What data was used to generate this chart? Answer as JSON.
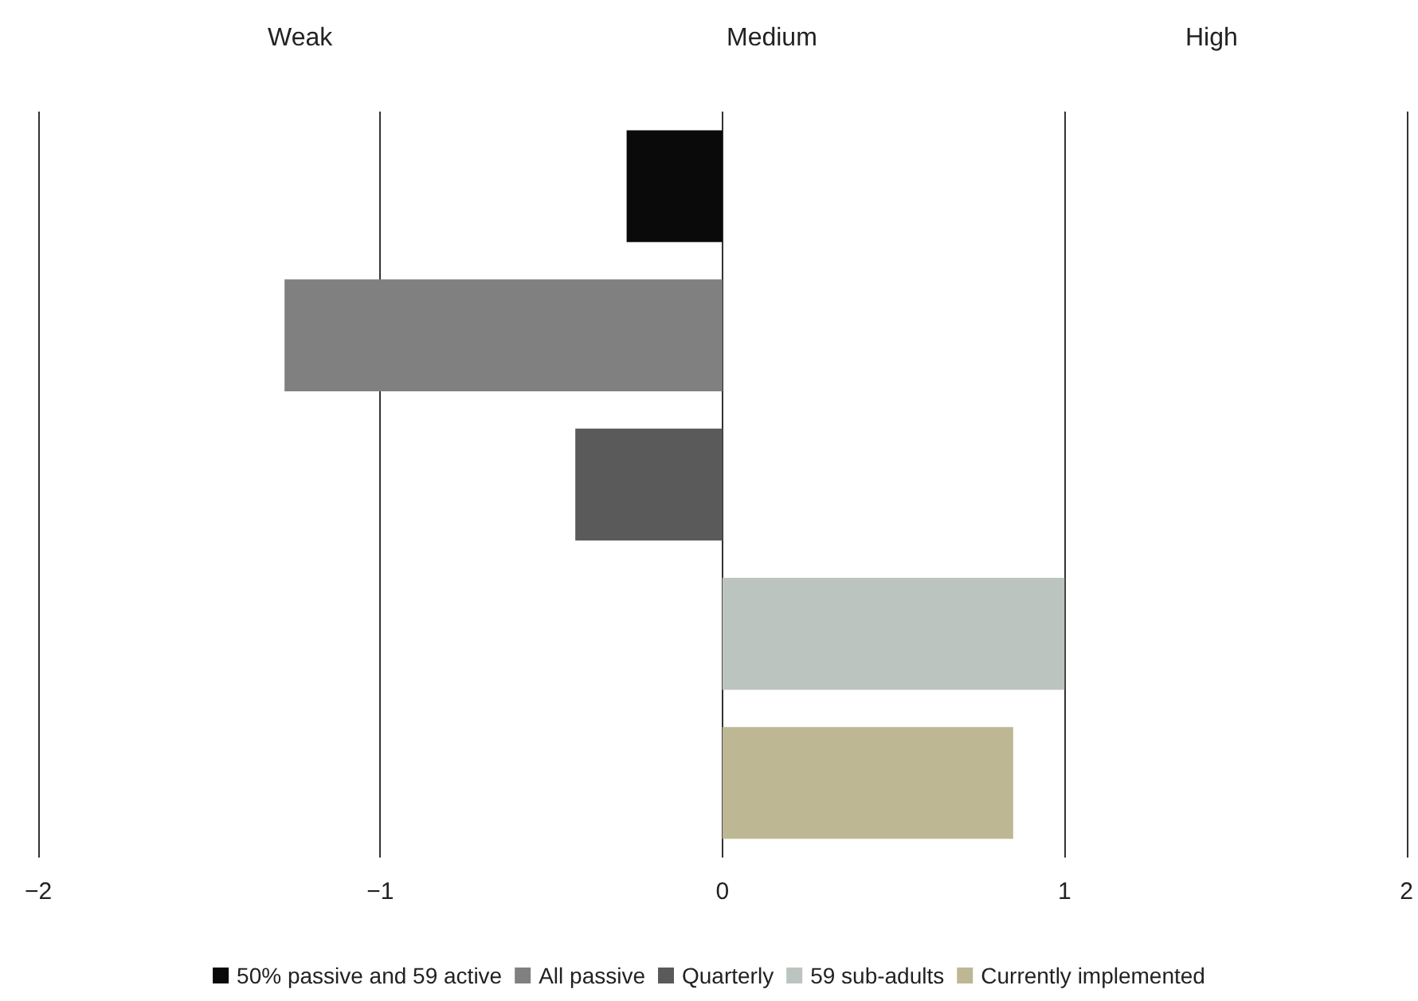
{
  "chart_data": {
    "type": "bar",
    "orientation": "horizontal",
    "stacked": true,
    "categories": [
      null,
      null,
      null,
      null,
      null
    ],
    "series": [
      {
        "name": "50% passive and 59 active",
        "color": "#0a0a0a",
        "values": [
          -0.28,
          null,
          null,
          null,
          null
        ]
      },
      {
        "name": "All passive",
        "color": "#808080",
        "values": [
          null,
          -1.28,
          null,
          null,
          null
        ]
      },
      {
        "name": "Quarterly",
        "color": "#5a5a5a",
        "values": [
          null,
          null,
          -0.43,
          null,
          null
        ]
      },
      {
        "name": "59 sub-adults",
        "color": "#bcc4c0",
        "values": [
          null,
          null,
          null,
          1.0,
          null
        ]
      },
      {
        "name": "Currently implemented",
        "color": "#bdb794",
        "values": [
          null,
          null,
          null,
          null,
          0.85
        ]
      }
    ],
    "xlim": [
      -2,
      2
    ],
    "xticks": [
      -2,
      -1,
      0,
      1,
      2
    ],
    "grid": "x",
    "legend": "bottom",
    "annotations": [
      "Weak",
      "Medium",
      "High"
    ]
  }
}
